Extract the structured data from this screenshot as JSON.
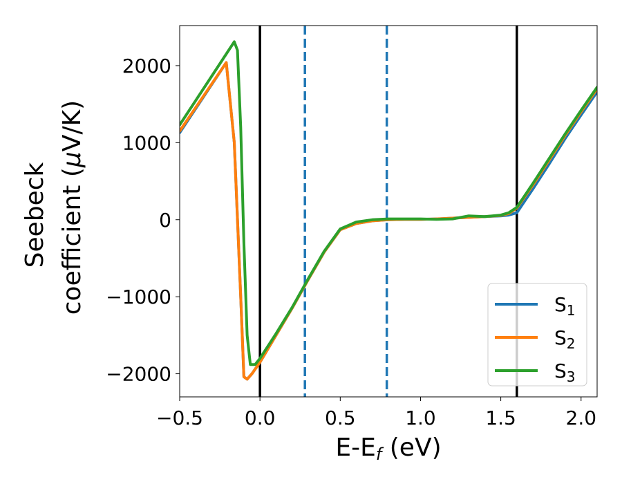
{
  "chart_data": {
    "type": "line",
    "xlabel": "E-E",
    "xlabel_sub": "f",
    "xlabel_unit": " (eV)",
    "ylabel_line1": "Seebeck",
    "ylabel_line2": "coefficient  (",
    "ylabel_mu": "μ",
    "ylabel_unit": "V/K)",
    "xlim": [
      -0.5,
      2.1
    ],
    "ylim": [
      -2300,
      2520
    ],
    "xticks": [
      -0.5,
      0.0,
      0.5,
      1.0,
      1.5,
      2.0
    ],
    "xtick_labels": [
      "−0.5",
      "0.0",
      "0.5",
      "1.0",
      "1.5",
      "2.0"
    ],
    "yticks": [
      -2000,
      -1000,
      0,
      1000,
      2000
    ],
    "ytick_labels": [
      "−2000",
      "−1000",
      "0",
      "1000",
      "2000"
    ],
    "grid": false,
    "legend_position": "bottom-right",
    "vlines": [
      {
        "x": 0.0,
        "style": "solid",
        "color": "#000000"
      },
      {
        "x": 0.28,
        "style": "dashed",
        "color": "#1f77b4"
      },
      {
        "x": 0.79,
        "style": "dashed",
        "color": "#1f77b4"
      },
      {
        "x": 1.6,
        "style": "solid",
        "color": "#000000"
      }
    ],
    "series": [
      {
        "name": "S",
        "sub": "1",
        "color": "#1f77b4",
        "x": [
          -0.5,
          -0.21,
          -0.16,
          -0.12,
          -0.1,
          -0.08,
          -0.05,
          0.0,
          0.1,
          0.2,
          0.3,
          0.4,
          0.5,
          0.6,
          0.7,
          0.8,
          0.9,
          1.0,
          1.1,
          1.2,
          1.3,
          1.4,
          1.5,
          1.55,
          1.6,
          1.7,
          1.8,
          1.9,
          2.0,
          2.1
        ],
        "y": [
          1130,
          2040,
          1000,
          -1000,
          -2040,
          -2070,
          -2000,
          -1850,
          -1500,
          -1150,
          -780,
          -420,
          -130,
          -50,
          -15,
          0,
          5,
          5,
          10,
          20,
          30,
          40,
          50,
          60,
          90,
          400,
          720,
          1050,
          1360,
          1660
        ]
      },
      {
        "name": "S",
        "sub": "2",
        "color": "#ff7f0e",
        "x": [
          -0.5,
          -0.21,
          -0.16,
          -0.12,
          -0.1,
          -0.08,
          -0.05,
          0.0,
          0.1,
          0.2,
          0.3,
          0.4,
          0.5,
          0.6,
          0.7,
          0.8,
          0.9,
          1.0,
          1.1,
          1.2,
          1.3,
          1.4,
          1.5,
          1.55,
          1.6,
          1.7,
          1.8,
          1.9,
          2.0,
          2.1
        ],
        "y": [
          1150,
          2040,
          1000,
          -1000,
          -2040,
          -2070,
          -2000,
          -1850,
          -1500,
          -1150,
          -780,
          -420,
          -130,
          -50,
          -15,
          0,
          5,
          5,
          10,
          20,
          30,
          40,
          55,
          80,
          150,
          450,
          770,
          1090,
          1400,
          1700
        ]
      },
      {
        "name": "S",
        "sub": "3",
        "color": "#2ca02c",
        "x": [
          -0.5,
          -0.16,
          -0.14,
          -0.12,
          -0.1,
          -0.08,
          -0.06,
          -0.03,
          0.0,
          0.1,
          0.2,
          0.3,
          0.4,
          0.5,
          0.6,
          0.7,
          0.8,
          0.9,
          1.0,
          1.1,
          1.2,
          1.3,
          1.4,
          1.5,
          1.55,
          1.6,
          1.7,
          1.8,
          1.9,
          2.0,
          2.1
        ],
        "y": [
          1230,
          2310,
          2200,
          1200,
          -300,
          -1500,
          -1880,
          -1880,
          -1800,
          -1480,
          -1140,
          -770,
          -410,
          -120,
          -30,
          0,
          10,
          10,
          10,
          5,
          10,
          50,
          40,
          60,
          90,
          160,
          470,
          790,
          1110,
          1420,
          1720
        ]
      }
    ]
  }
}
